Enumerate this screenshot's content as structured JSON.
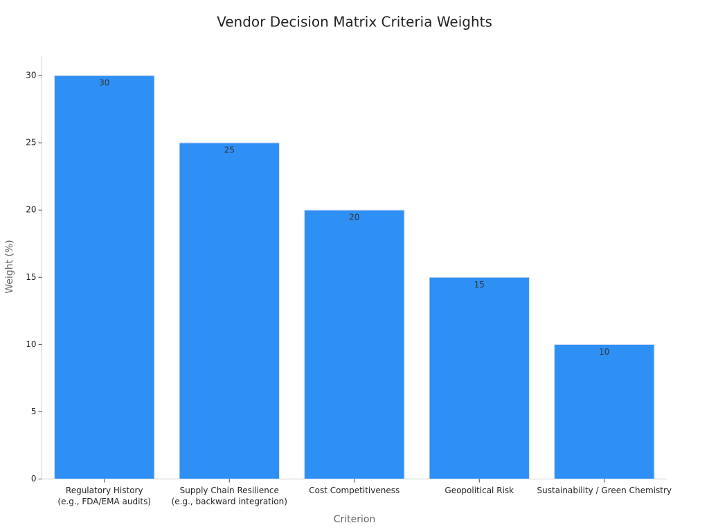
{
  "chart_data": {
    "type": "bar",
    "title": "Vendor Decision Matrix Criteria Weights",
    "x_label": "Criterion",
    "y_label": "Weight (%)",
    "categories": [
      "Regulatory History\n(e.g., FDA/EMA audits)",
      "Supply Chain Resilience\n(e.g., backward integration)",
      "Cost Competitiveness",
      "Geopolitical Risk",
      "Sustainability / Green Chemistry"
    ],
    "values": [
      30,
      25,
      20,
      15,
      10
    ],
    "color": "#2e90f5",
    "ylim": [
      0,
      31.5
    ],
    "yticks": [
      0,
      5,
      10,
      15,
      20,
      25,
      30
    ],
    "grid": false
  }
}
